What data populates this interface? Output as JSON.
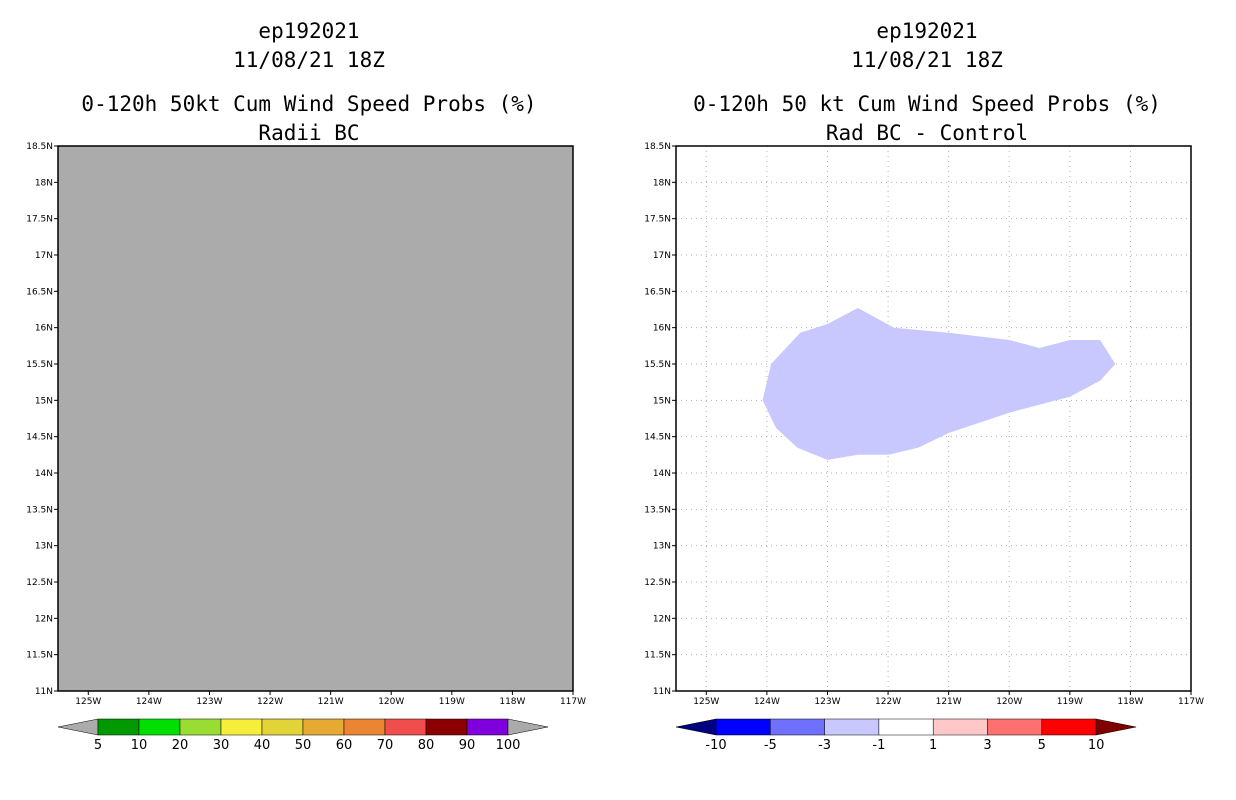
{
  "chart_data": [
    {
      "type": "heatmap",
      "title_lines": [
        "ep192021",
        "11/08/21 18Z"
      ],
      "title": "0-120h 50kt Cum Wind Speed Probs (%)",
      "subtitle": "Radii BC",
      "xlim": [
        -125.5,
        -117
      ],
      "ylim": [
        11,
        18.5
      ],
      "x_ticks": [
        -125,
        -124,
        -123,
        -122,
        -121,
        -120,
        -119,
        -118,
        -117
      ],
      "x_tick_labels": [
        "125W",
        "124W",
        "123W",
        "122W",
        "121W",
        "120W",
        "119W",
        "118W",
        "117W"
      ],
      "y_ticks": [
        11,
        11.5,
        12,
        12.5,
        13,
        13.5,
        14,
        14.5,
        15,
        15.5,
        16,
        16.5,
        17,
        17.5,
        18,
        18.5
      ],
      "y_tick_labels": [
        "11N",
        "11.5N",
        "12N",
        "12.5N",
        "13N",
        "13.5N",
        "14N",
        "14.5N",
        "15N",
        "15.5N",
        "16N",
        "16.5N",
        "17N",
        "17.5N",
        "18N",
        "18.5N"
      ],
      "grid": false,
      "field": "uniform gray (all values below 5%)",
      "colorbar": {
        "labels": [
          "5",
          "10",
          "20",
          "30",
          "40",
          "50",
          "60",
          "70",
          "80",
          "90",
          "100"
        ],
        "colors": [
          "#ababab",
          "#009900",
          "#00e000",
          "#99dd33",
          "#f6ee3a",
          "#e2d338",
          "#e6aa33",
          "#ec8532",
          "#f04d4d",
          "#8b0000",
          "#7f00dc",
          "#ababab"
        ]
      }
    },
    {
      "type": "heatmap",
      "title_lines": [
        "ep192021",
        "11/08/21 18Z"
      ],
      "title": "0-120h 50 kt Cum Wind Speed Probs (%)",
      "subtitle": "Rad BC - Control",
      "xlim": [
        -125.5,
        -117
      ],
      "ylim": [
        11,
        18.5
      ],
      "x_ticks": [
        -125,
        -124,
        -123,
        -122,
        -121,
        -120,
        -119,
        -118,
        -117
      ],
      "x_tick_labels": [
        "125W",
        "124W",
        "123W",
        "122W",
        "121W",
        "120W",
        "119W",
        "118W",
        "117W"
      ],
      "y_ticks": [
        11,
        11.5,
        12,
        12.5,
        13,
        13.5,
        14,
        14.5,
        15,
        15.5,
        16,
        16.5,
        17,
        17.5,
        18,
        18.5
      ],
      "y_tick_labels": [
        "11N",
        "11.5N",
        "12N",
        "12.5N",
        "13N",
        "13.5N",
        "14N",
        "14.5N",
        "15N",
        "15.5N",
        "16N",
        "16.5N",
        "17N",
        "17.5N",
        "18N",
        "18.5N"
      ],
      "grid": true,
      "region": {
        "category": "-3 to -1",
        "color": "#c8c8ff",
        "polygon_lonlat": [
          [
            -124.07,
            15.0
          ],
          [
            -123.93,
            15.5
          ],
          [
            -123.45,
            15.93
          ],
          [
            -123.0,
            16.05
          ],
          [
            -122.5,
            16.27
          ],
          [
            -121.9,
            16.0
          ],
          [
            -121.0,
            15.93
          ],
          [
            -120.0,
            15.83
          ],
          [
            -119.5,
            15.72
          ],
          [
            -119.0,
            15.83
          ],
          [
            -118.5,
            15.83
          ],
          [
            -118.25,
            15.5
          ],
          [
            -118.5,
            15.27
          ],
          [
            -119.0,
            15.05
          ],
          [
            -120.0,
            14.83
          ],
          [
            -121.0,
            14.55
          ],
          [
            -121.5,
            14.35
          ],
          [
            -122.0,
            14.25
          ],
          [
            -122.5,
            14.25
          ],
          [
            -123.0,
            14.18
          ],
          [
            -123.5,
            14.35
          ],
          [
            -123.85,
            14.62
          ]
        ]
      },
      "colorbar": {
        "labels": [
          "-10",
          "-5",
          "-3",
          "-1",
          "1",
          "3",
          "5",
          "10"
        ],
        "colors": [
          "#000080",
          "#0000ff",
          "#7070ff",
          "#c8c8ff",
          "#ffffff",
          "#ffc8c8",
          "#ff7070",
          "#ff0000",
          "#800000"
        ]
      }
    }
  ]
}
